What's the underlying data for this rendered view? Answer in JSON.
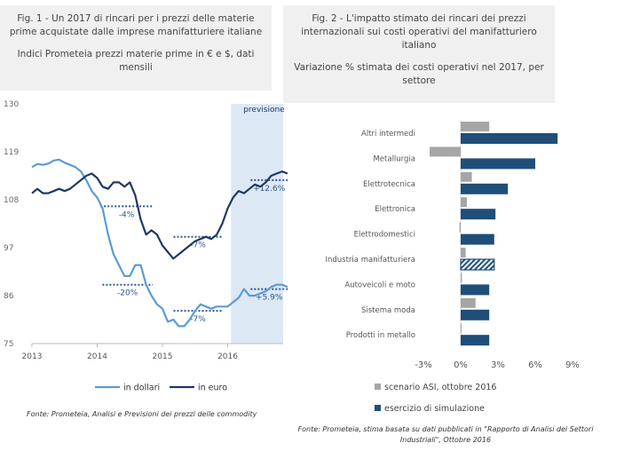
{
  "fig1": {
    "title": "Fig. 1 - Un 2017 di rincari per i prezzi delle materie prime acquistate dalle imprese manifatturiere italiane",
    "subtitle": "Indici Prometeia prezzi materie prime in € e $, dati mensili",
    "source": "Fonte: Prometeia, Analisi e Previsioni dei prezzi delle commodity"
  },
  "fig2": {
    "title": "Fig. 2 - L'impatto stimato dei rincari dei prezzi internazionali sui costi operativi del manifatturiero italiano",
    "subtitle": "Variazione % stimata dei costi operativi nel 2017, per settore",
    "source": "Fonte: Prometeia, stima basata su dati pubblicati in \"Rapporto di Analisi dei Settori Industriali\", Ottobre 2016"
  },
  "chart_data": [
    {
      "type": "line",
      "title": "",
      "xlabel": "",
      "ylabel": "",
      "x_ticks": [
        "2013",
        "2014",
        "2015",
        "2016"
      ],
      "y_ticks": [
        75,
        86,
        97,
        108,
        119,
        130
      ],
      "ylim": [
        75,
        130
      ],
      "forecast_label": "previsione",
      "legend_position": "bottom",
      "colors": {
        "dollar": "#5b9bd5",
        "euro": "#1f3864",
        "forecast_band": "#dde8f5",
        "annot": "#2e5597"
      },
      "series": [
        {
          "name": "in dollari",
          "x": [
            2013.0,
            2013.083,
            2013.167,
            2013.25,
            2013.333,
            2013.417,
            2013.5,
            2013.583,
            2013.667,
            2013.75,
            2013.833,
            2013.917,
            2014.0,
            2014.083,
            2014.167,
            2014.25,
            2014.333,
            2014.417,
            2014.5,
            2014.583,
            2014.667,
            2014.75,
            2014.833,
            2014.917,
            2015.0,
            2015.083,
            2015.167,
            2015.25,
            2015.333,
            2015.417,
            2015.5,
            2015.583,
            2015.667,
            2015.75,
            2015.833,
            2015.917,
            2016.0,
            2016.083,
            2016.167,
            2016.25,
            2016.333,
            2016.417,
            2016.5,
            2016.583,
            2016.667,
            2016.75,
            2016.833,
            2016.917
          ],
          "y": [
            115.5,
            116.2,
            116.0,
            116.3,
            117.0,
            117.2,
            116.5,
            116.0,
            115.5,
            114.5,
            112.5,
            110.0,
            108.5,
            106.0,
            100.0,
            95.5,
            93.0,
            90.5,
            90.5,
            93.0,
            93.0,
            88.5,
            86.0,
            84.0,
            83.0,
            80.0,
            80.5,
            79.0,
            79.0,
            80.5,
            82.5,
            84.0,
            83.5,
            83.0,
            83.5,
            83.5,
            83.5,
            84.5,
            85.5,
            87.5,
            86.0,
            86.0,
            86.5,
            87.0,
            88.0,
            88.5,
            88.5,
            88.0
          ]
        },
        {
          "name": "in euro",
          "x": [
            2013.0,
            2013.083,
            2013.167,
            2013.25,
            2013.333,
            2013.417,
            2013.5,
            2013.583,
            2013.667,
            2013.75,
            2013.833,
            2013.917,
            2014.0,
            2014.083,
            2014.167,
            2014.25,
            2014.333,
            2014.417,
            2014.5,
            2014.583,
            2014.667,
            2014.75,
            2014.833,
            2014.917,
            2015.0,
            2015.083,
            2015.167,
            2015.25,
            2015.333,
            2015.417,
            2015.5,
            2015.583,
            2015.667,
            2015.75,
            2015.833,
            2015.917,
            2016.0,
            2016.083,
            2016.167,
            2016.25,
            2016.333,
            2016.417,
            2016.5,
            2016.583,
            2016.667,
            2016.75,
            2016.833,
            2016.917
          ],
          "y": [
            109.5,
            110.5,
            109.5,
            109.5,
            110.0,
            110.5,
            110.0,
            110.5,
            111.5,
            112.5,
            113.5,
            114.0,
            113.0,
            111.0,
            110.5,
            112.0,
            112.0,
            111.0,
            112.0,
            109.0,
            103.5,
            100.0,
            101.0,
            100.0,
            97.5,
            96.0,
            94.5,
            95.5,
            96.5,
            97.5,
            98.5,
            99.0,
            99.5,
            99.0,
            100.0,
            102.5,
            106.0,
            108.5,
            110.0,
            109.5,
            110.5,
            111.5,
            111.0,
            112.0,
            113.5,
            114.0,
            114.5,
            114.0
          ]
        }
      ],
      "annotations": [
        {
          "series": "in euro",
          "text": "-4%",
          "x0": 2014.05,
          "x1": 2014.85,
          "level": 106.5
        },
        {
          "series": "in euro",
          "text": "-7%",
          "x0": 2015.17,
          "x1": 2015.92,
          "level": 99.5
        },
        {
          "series": "in euro",
          "text": "+12.6%",
          "x0": 2016.35,
          "x1": 2016.92,
          "level": 112.5
        },
        {
          "series": "in dollari",
          "text": "-20%",
          "x0": 2014.08,
          "x1": 2014.85,
          "level": 88.5
        },
        {
          "series": "in dollari",
          "text": "-7%",
          "x0": 2015.17,
          "x1": 2015.92,
          "level": 82.5
        },
        {
          "series": "in dollari",
          "text": "+5.9%",
          "x0": 2016.35,
          "x1": 2016.92,
          "level": 87.5
        }
      ]
    },
    {
      "type": "bar",
      "orientation": "horizontal",
      "title": "",
      "xlabel": "",
      "ylabel": "",
      "categories": [
        "Altri intermedi",
        "Metallurgia",
        "Elettrotecnica",
        "Elettronica",
        "Elettrodomestici",
        "Industria manifatturiera",
        "Autoveicoli e moto",
        "Sistema moda",
        "Prodotti in metallo"
      ],
      "x_ticks": [
        "-3%",
        "0%",
        "3%",
        "6%",
        "9%"
      ],
      "x_tick_values": [
        -3,
        0,
        3,
        6,
        9
      ],
      "xlim": [
        -3,
        9
      ],
      "legend_position": "bottom-left",
      "series": [
        {
          "name": "scenario ASI, ottobre 2016",
          "color": "#a6a6a6",
          "values": [
            2.3,
            -2.5,
            0.9,
            0.5,
            -0.1,
            0.4,
            0.1,
            1.2,
            0.0
          ]
        },
        {
          "name": "esercizio di simulazione",
          "color": "#1f4e79",
          "values": [
            7.8,
            6.0,
            3.8,
            2.8,
            2.7,
            2.7,
            2.3,
            2.3,
            2.3
          ],
          "highlight_index": 5
        }
      ]
    }
  ]
}
